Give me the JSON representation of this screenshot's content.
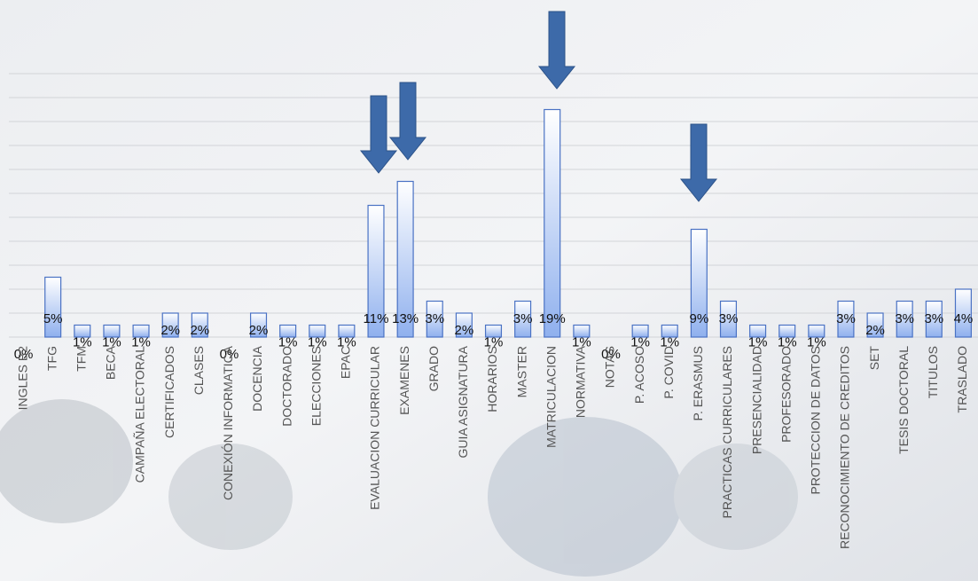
{
  "chart_data": {
    "type": "bar",
    "categories": [
      "INGLES B2",
      "TFG",
      "TFM",
      "BECA",
      "CAMPAÑA ELECTORAL",
      "CERTIFICADOS",
      "CLASES",
      "CONEXIÓN INFORMATICA",
      "DOCENCIA",
      "DOCTORADO",
      "ELECCIONES",
      "EPAC",
      "EVALUACION CURRICULAR",
      "EXAMENES",
      "GRADO",
      "GUIA ASIGNATURA",
      "HORARIOS",
      "MASTER",
      "MATRICULACION",
      "NORMATIVA",
      "NOTAS",
      "P. ACOSO",
      "P. COVID",
      "P. ERASMUS",
      "PRACTICAS CURRICULARES",
      "PRESENCIALIDAD",
      "PROFESORADO",
      "PROTECCION DE DATOS",
      "RECONOCIMIENTO DE CREDITOS",
      "SET",
      "TESIS DOCTORAL",
      "TITULOS",
      "TRASLADO"
    ],
    "values": [
      0,
      5,
      1,
      1,
      1,
      2,
      2,
      0,
      2,
      1,
      1,
      1,
      11,
      13,
      3,
      2,
      1,
      3,
      19,
      1,
      0,
      1,
      1,
      9,
      3,
      1,
      1,
      1,
      3,
      2,
      3,
      3,
      4
    ],
    "value_labels": [
      "0%",
      "5%",
      "1%",
      "1%",
      "1%",
      "2%",
      "2%",
      "0%",
      "2%",
      "1%",
      "1%",
      "1%",
      "11%",
      "13%",
      "3%",
      "2%",
      "1%",
      "3%",
      "19%",
      "1%",
      "0%",
      "1%",
      "1%",
      "9%",
      "3%",
      "1%",
      "1%",
      "1%",
      "3%",
      "2%",
      "3%",
      "3%",
      "4%"
    ],
    "color": "#8fb0ee",
    "ylim": [
      0,
      22
    ],
    "yticks": [
      0,
      2,
      4,
      6,
      8,
      10,
      12,
      14,
      16,
      18,
      20,
      22
    ],
    "grid": true
  }
}
